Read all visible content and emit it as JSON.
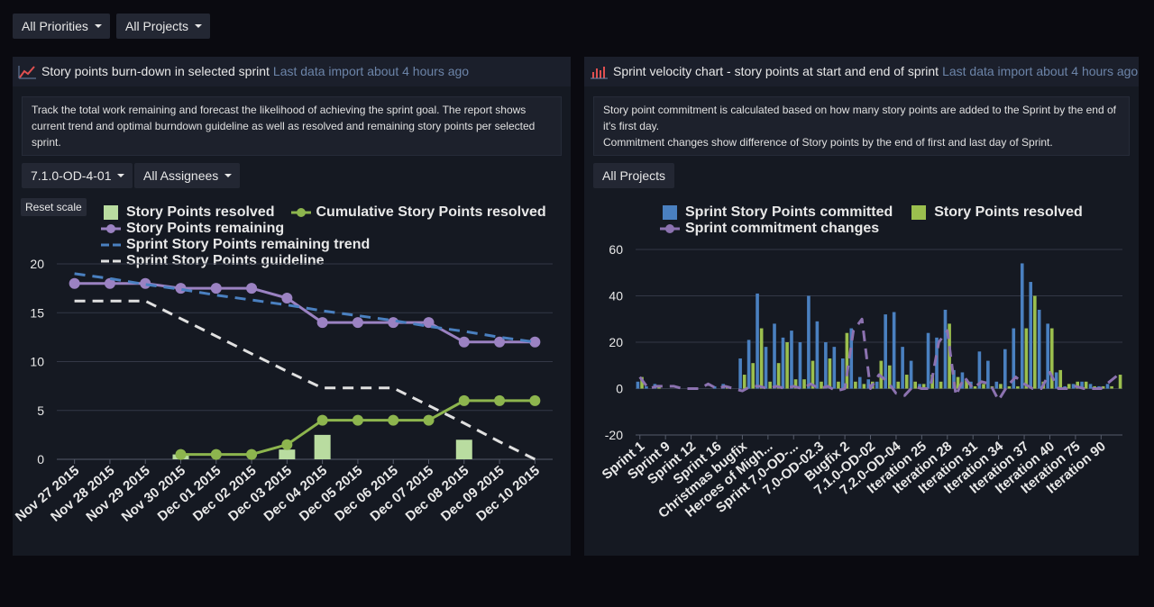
{
  "filters": {
    "priority": "All Priorities",
    "project": "All Projects"
  },
  "panels": [
    {
      "title": "Story points burn-down in selected sprint",
      "status": "Last data import about 4 hours ago",
      "description": "Track the total work remaining and forecast the likelihood of achieving the sprint goal. The report shows current trend and optimal burndown guideline as well as resolved and remaining story points per selected sprint.",
      "dropdowns": [
        "7.1.0-OD-4-01",
        "All Assignees"
      ],
      "button": "Reset scale"
    },
    {
      "title": "Sprint velocity chart - story points at start and end of sprint",
      "status": "Last data import about 4 hours ago",
      "description": [
        "Story point commitment is calculated based on how many story points are added to the Sprint by the end of it's first day.",
        "Commitment changes show difference of Story points by the end of first and last day of Sprint."
      ],
      "dropdowns": [
        "All Projects"
      ]
    }
  ],
  "chart_data": [
    {
      "type": "combo",
      "categories": [
        "Nov 27 2015",
        "Nov 28 2015",
        "Nov 29 2015",
        "Nov 30 2015",
        "Dec 01 2015",
        "Dec 02 2015",
        "Dec 03 2015",
        "Dec 04 2015",
        "Dec 05 2015",
        "Dec 06 2015",
        "Dec 07 2015",
        "Dec 08 2015",
        "Dec 09 2015",
        "Dec 10 2015"
      ],
      "ylim": [
        0,
        20
      ],
      "yticks": [
        0,
        5,
        10,
        15,
        20
      ],
      "grid": true,
      "series": [
        {
          "name": "Story Points resolved",
          "type": "bar",
          "color": "#b9dca0",
          "values": [
            null,
            null,
            null,
            0.5,
            null,
            null,
            1,
            2.5,
            null,
            null,
            null,
            2,
            null,
            null
          ]
        },
        {
          "name": "Cumulative Story Points resolved",
          "type": "line",
          "markers": true,
          "color": "#8db54e",
          "values": [
            null,
            null,
            null,
            0.5,
            0.5,
            0.5,
            1.5,
            4,
            4,
            4,
            4,
            6,
            6,
            6
          ]
        },
        {
          "name": "Story Points remaining",
          "type": "line",
          "markers": true,
          "color": "#9b82c2",
          "values": [
            18,
            18,
            18,
            17.5,
            17.5,
            17.5,
            16.5,
            14,
            14,
            14,
            14,
            12,
            12,
            12
          ]
        },
        {
          "name": "Sprint Story Points remaining trend",
          "type": "line",
          "dashed": true,
          "color": "#4a80c0",
          "values": [
            19,
            18.5,
            17.9,
            17.4,
            16.8,
            16.3,
            15.8,
            15.2,
            14.7,
            14.2,
            13.6,
            13.1,
            12.5,
            12
          ]
        },
        {
          "name": "Sprint Story Points guideline",
          "type": "line",
          "dashed": true,
          "color": "#e0e0e0",
          "values": [
            16.2,
            16.2,
            16.2,
            14.4,
            12.6,
            10.8,
            9,
            7.3,
            7.3,
            7.3,
            5.5,
            3.7,
            1.8,
            0
          ]
        }
      ]
    },
    {
      "type": "combo",
      "categories": [
        "Sprint 1",
        null,
        null,
        "Sprint 9",
        null,
        null,
        "Sprint 12",
        null,
        null,
        "Sprint 16",
        null,
        null,
        "Christmas bugfix",
        null,
        null,
        "Heroes of Migh...",
        null,
        null,
        "Sprint 7.0-OD-...",
        null,
        null,
        "7.0-OD-02.3",
        null,
        null,
        "Bugfix 2",
        null,
        null,
        "7.1.0-OD-02",
        null,
        null,
        "7.2.0-OD-04",
        null,
        null,
        "Iteration 25",
        null,
        null,
        "Iteration 28",
        null,
        null,
        "Iteration 31",
        null,
        null,
        "Iteration 34",
        null,
        null,
        "Iteration 37",
        null,
        null,
        "Iteration 40",
        null,
        null,
        "Iteration 75",
        null,
        null,
        "Iteration 90",
        null,
        null
      ],
      "ylim": [
        -20,
        60
      ],
      "yticks": [
        -20,
        0,
        20,
        40,
        60
      ],
      "grid": true,
      "series": [
        {
          "name": "Sprint Story Points committed",
          "type": "bar",
          "color": "#4a80c0",
          "values": [
            3,
            1,
            2,
            0,
            0,
            0,
            0,
            0,
            0,
            1,
            2,
            0,
            13,
            21,
            41,
            18,
            28,
            22,
            25,
            20,
            40,
            29,
            20,
            18,
            13,
            26,
            5,
            4,
            3,
            32,
            33,
            18,
            12,
            2,
            24,
            22,
            34,
            8,
            7,
            3,
            16,
            12,
            3,
            17,
            26,
            54,
            46,
            34,
            28,
            7,
            1,
            2,
            3,
            2,
            1,
            2,
            0
          ]
        },
        {
          "name": "Story Points resolved",
          "type": "bar",
          "color": "#9bbf4e",
          "values": [
            5,
            0,
            1,
            0,
            0,
            0,
            0,
            0,
            0,
            0,
            1,
            0,
            6,
            11,
            26,
            3,
            11,
            20,
            4,
            4,
            12,
            3,
            13,
            3,
            24,
            3,
            2,
            3,
            12,
            10,
            3,
            6,
            3,
            2,
            6,
            3,
            28,
            5,
            4,
            1,
            2,
            1,
            2,
            1,
            1,
            26,
            40,
            3,
            26,
            8,
            2,
            3,
            3,
            1,
            1,
            1,
            6
          ]
        },
        {
          "name": "Sprint commitment changes",
          "type": "line",
          "dashed": true,
          "color": "#8c72b0",
          "values": [
            5,
            0,
            1,
            1,
            1,
            0,
            0,
            0,
            2,
            0,
            1,
            0,
            -1,
            1,
            1,
            0,
            1,
            0,
            1,
            0,
            2,
            0,
            1,
            -1,
            0,
            25,
            30,
            0,
            6,
            3,
            -2,
            -3,
            1,
            0,
            0,
            20,
            25,
            -3,
            5,
            0,
            3,
            2,
            -5,
            1,
            5,
            2,
            0,
            0,
            7,
            0,
            0,
            1,
            0,
            0,
            0,
            3,
            6
          ]
        }
      ]
    }
  ]
}
